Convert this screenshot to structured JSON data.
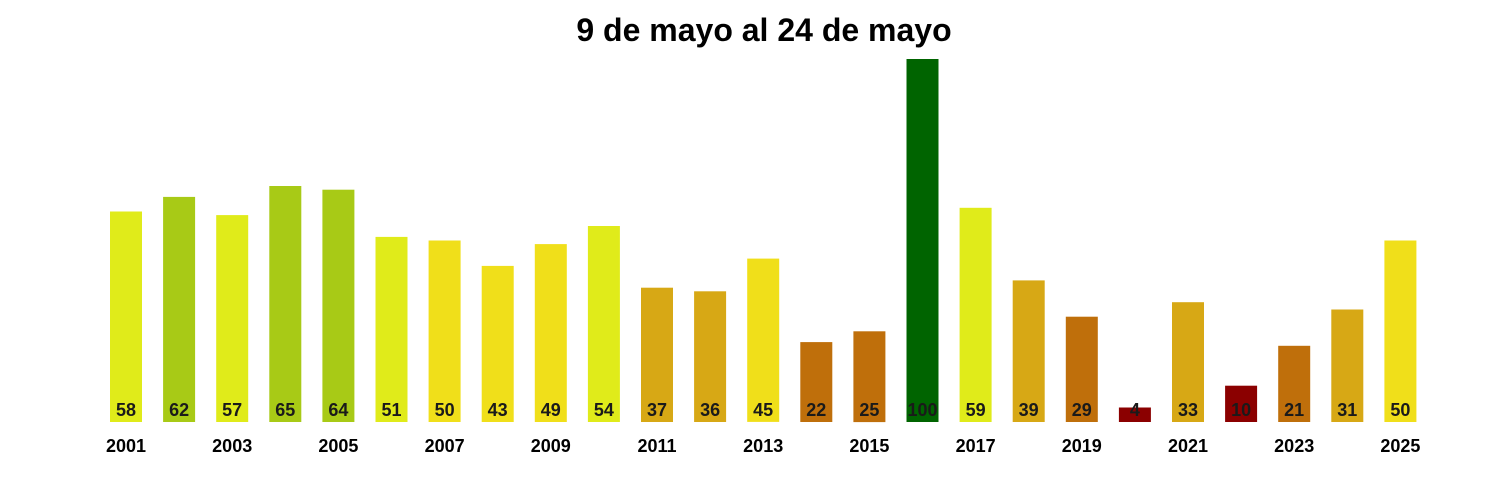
{
  "chart_data": {
    "type": "bar",
    "title": "9 de mayo al 24 de mayo",
    "xlabel": "",
    "ylabel": "",
    "ylim": [
      0,
      100
    ],
    "grid": false,
    "legend": "none",
    "categories": [
      "2001",
      "2002",
      "2003",
      "2004",
      "2005",
      "2006",
      "2007",
      "2008",
      "2009",
      "2010",
      "2011",
      "2012",
      "2013",
      "2014",
      "2015",
      "2016",
      "2017",
      "2018",
      "2019",
      "2020",
      "2021",
      "2022",
      "2023",
      "2024",
      "2025"
    ],
    "tick_labels": [
      "2001",
      "2003",
      "2005",
      "2007",
      "2009",
      "2011",
      "2013",
      "2015",
      "2017",
      "2019",
      "2021",
      "2023",
      "2025"
    ],
    "values": [
      58,
      62,
      57,
      65,
      64,
      51,
      50,
      43,
      49,
      54,
      37,
      36,
      45,
      22,
      25,
      100,
      59,
      39,
      29,
      4,
      33,
      10,
      21,
      31,
      50
    ],
    "labels": [
      "58",
      "62",
      "57",
      "65",
      "64",
      "51",
      "50",
      "43",
      "49",
      "54",
      "37",
      "36",
      "45",
      "22",
      "25",
      "100",
      "59",
      "39",
      "29",
      "4",
      "33",
      "10",
      "21",
      "31",
      "50"
    ],
    "colors": [
      "#E0EB1A",
      "#A8CA16",
      "#E0EB1A",
      "#A8CA16",
      "#A8CA16",
      "#E0EB1A",
      "#F0DF1A",
      "#F0DF1A",
      "#F0DF1A",
      "#E0EB1A",
      "#D7A815",
      "#D7A815",
      "#F0DF1A",
      "#BF6F0B",
      "#BF6F0B",
      "#006400",
      "#E0EB1A",
      "#D7A815",
      "#BF6F0B",
      "#8B0000",
      "#D7A815",
      "#8B0000",
      "#BF6F0B",
      "#D7A815",
      "#F0DF1A"
    ]
  }
}
